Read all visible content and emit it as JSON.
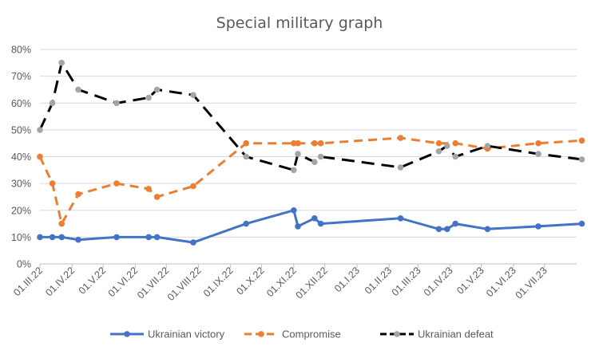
{
  "chart_data": {
    "type": "line",
    "title": "Special military graph",
    "ylim": [
      0,
      80
    ],
    "y_ticks": [
      "0%",
      "10%",
      "20%",
      "30%",
      "40%",
      "50%",
      "60%",
      "70%",
      "80%"
    ],
    "x_ticks": [
      "01.III.22",
      "01.IV.22",
      "01.V.22",
      "01.VI.22",
      "01.VII.22",
      "01.VIII.22",
      "01.IX.22",
      "01.X.22",
      "01.XI.22",
      "01.XII.22",
      "01.I.23",
      "01.II.23",
      "01.III.23",
      "01.IV.23",
      "01.V.23",
      "01.VI.23",
      "01.VII.23"
    ],
    "x_unit": "date",
    "grid": "horizontal",
    "legend_position": "bottom",
    "series": [
      {
        "name": "Ukrainian victory",
        "color": "#4472C4",
        "style": "solid",
        "marker_color": "#4472C4",
        "points": [
          [
            "2022-03-01",
            10
          ],
          [
            "2022-03-13",
            10
          ],
          [
            "2022-03-22",
            10
          ],
          [
            "2022-04-07",
            9
          ],
          [
            "2022-05-14",
            10
          ],
          [
            "2022-06-14",
            10
          ],
          [
            "2022-06-22",
            10
          ],
          [
            "2022-07-27",
            8
          ],
          [
            "2022-09-16",
            15
          ],
          [
            "2022-11-01",
            20
          ],
          [
            "2022-11-05",
            14
          ],
          [
            "2022-11-21",
            17
          ],
          [
            "2022-11-27",
            15
          ],
          [
            "2023-02-12",
            17
          ],
          [
            "2023-03-21",
            13
          ],
          [
            "2023-03-29",
            13
          ],
          [
            "2023-04-06",
            15
          ],
          [
            "2023-05-07",
            13
          ],
          [
            "2023-06-25",
            14
          ],
          [
            "2023-08-06",
            15
          ]
        ]
      },
      {
        "name": "Compromise",
        "color": "#ED7D31",
        "style": "dash",
        "marker_color": "#ED7D31",
        "points": [
          [
            "2022-03-01",
            40
          ],
          [
            "2022-03-13",
            30
          ],
          [
            "2022-03-22",
            15
          ],
          [
            "2022-04-07",
            26
          ],
          [
            "2022-05-14",
            30
          ],
          [
            "2022-06-14",
            28
          ],
          [
            "2022-06-22",
            25
          ],
          [
            "2022-07-27",
            29
          ],
          [
            "2022-09-16",
            45
          ],
          [
            "2022-11-01",
            45
          ],
          [
            "2022-11-05",
            45
          ],
          [
            "2022-11-21",
            45
          ],
          [
            "2022-11-27",
            45
          ],
          [
            "2023-02-12",
            47
          ],
          [
            "2023-03-21",
            45
          ],
          [
            "2023-04-06",
            45
          ],
          [
            "2023-05-07",
            43
          ],
          [
            "2023-06-25",
            45
          ],
          [
            "2023-08-06",
            46
          ]
        ]
      },
      {
        "name": "Ukrainian defeat",
        "color": "#000000",
        "style": "dash",
        "marker_color": "#A5A5A5",
        "points": [
          [
            "2022-03-01",
            50
          ],
          [
            "2022-03-13",
            60
          ],
          [
            "2022-03-22",
            75
          ],
          [
            "2022-04-07",
            65
          ],
          [
            "2022-05-14",
            60
          ],
          [
            "2022-06-14",
            62
          ],
          [
            "2022-06-22",
            65
          ],
          [
            "2022-07-27",
            63
          ],
          [
            "2022-09-16",
            40
          ],
          [
            "2022-11-01",
            35
          ],
          [
            "2022-11-05",
            41
          ],
          [
            "2022-11-21",
            38
          ],
          [
            "2022-11-27",
            40
          ],
          [
            "2023-02-12",
            36
          ],
          [
            "2023-03-21",
            42
          ],
          [
            "2023-03-29",
            44
          ],
          [
            "2023-04-06",
            40
          ],
          [
            "2023-05-07",
            44
          ],
          [
            "2023-06-25",
            41
          ],
          [
            "2023-08-06",
            39
          ]
        ]
      }
    ]
  }
}
